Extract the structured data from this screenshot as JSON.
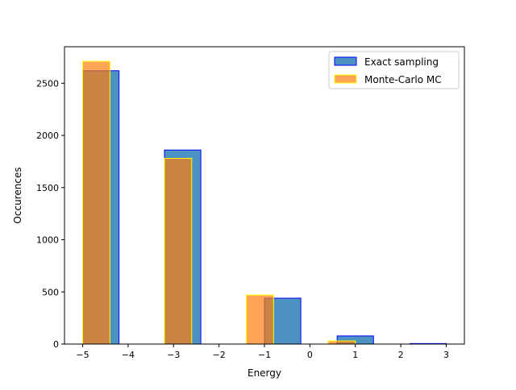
{
  "chart_data": {
    "type": "bar",
    "title": "",
    "xlabel": "Energy",
    "ylabel": "Occurences",
    "xlim": [
      -5.4,
      3.4
    ],
    "ylim": [
      0,
      2850
    ],
    "xticks": [
      -5,
      -4,
      -3,
      -2,
      -1,
      0,
      1,
      2,
      3
    ],
    "xtick_labels": [
      "−5",
      "−4",
      "−3",
      "−2",
      "−1",
      "0",
      "1",
      "2",
      "3"
    ],
    "yticks": [
      0,
      500,
      1000,
      1500,
      2000,
      2500
    ],
    "ytick_labels": [
      "0",
      "500",
      "1000",
      "1500",
      "2000",
      "2500"
    ],
    "grid": false,
    "legend_position": "top-right",
    "series": [
      {
        "name": "Exact sampling",
        "fill": "#1f77b4",
        "edge": "#0000ff",
        "alpha": 0.8,
        "bins": [
          {
            "x0": -5.0,
            "x1": -4.2,
            "value": 2620
          },
          {
            "x0": -3.2,
            "x1": -2.4,
            "value": 1860
          },
          {
            "x0": -1.0,
            "x1": -0.2,
            "value": 440
          },
          {
            "x0": 0.6,
            "x1": 1.4,
            "value": 78
          },
          {
            "x0": 2.2,
            "x1": 3.0,
            "value": 5
          }
        ]
      },
      {
        "name": "Monte-Carlo MC",
        "fill": "#ff7f0e",
        "edge": "#ffff00",
        "alpha": 0.7,
        "bins": [
          {
            "x0": -5.0,
            "x1": -4.4,
            "value": 2710
          },
          {
            "x0": -3.2,
            "x1": -2.6,
            "value": 1780
          },
          {
            "x0": -1.4,
            "x1": -0.8,
            "value": 470
          },
          {
            "x0": 0.4,
            "x1": 1.0,
            "value": 30
          }
        ]
      }
    ]
  }
}
